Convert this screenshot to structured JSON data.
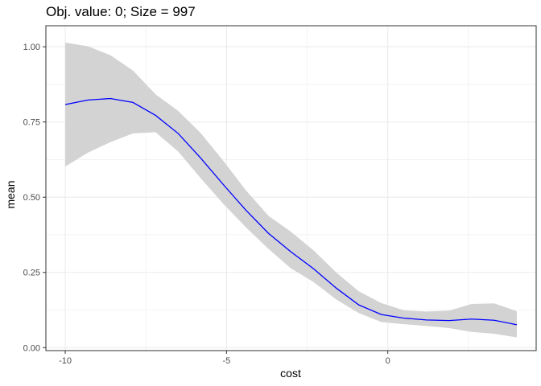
{
  "chart_data": {
    "type": "line",
    "title": "Obj. value: 0; Size = 997",
    "xlabel": "cost",
    "ylabel": "mean",
    "xlim": [
      -10.6,
      4.6
    ],
    "ylim": [
      -0.01,
      1.07
    ],
    "xticks": [
      -10,
      -5,
      0
    ],
    "xtick_labels": [
      "-10",
      "-5",
      "0"
    ],
    "yticks": [
      0,
      0.25,
      0.5,
      0.75,
      1.0
    ],
    "ytick_labels": [
      "0.00",
      "0.25",
      "0.50",
      "0.75",
      "1.00"
    ],
    "grid": true,
    "legend": "none",
    "colors": {
      "line": "#0000FF",
      "ribbon": "#D3D3D3",
      "panel_border": "#333333",
      "grid": "#EBEBEB"
    },
    "series": [
      {
        "x": [
          -10,
          -9.3,
          -8.6,
          -7.9,
          -7.2,
          -6.5,
          -5.8,
          -5.1,
          -4.4,
          -3.7,
          -3.0,
          -2.3,
          -1.6,
          -0.9,
          -0.2,
          0.5,
          1.2,
          1.9,
          2.6,
          3.3,
          4.0
        ],
        "values": [
          0.808,
          0.823,
          0.828,
          0.815,
          0.772,
          0.712,
          0.63,
          0.542,
          0.457,
          0.38,
          0.318,
          0.262,
          0.198,
          0.142,
          0.11,
          0.098,
          0.092,
          0.09,
          0.095,
          0.091,
          0.076
        ],
        "lower": [
          0.602,
          0.648,
          0.683,
          0.712,
          0.716,
          0.652,
          0.563,
          0.478,
          0.4,
          0.328,
          0.263,
          0.218,
          0.16,
          0.115,
          0.085,
          0.078,
          0.072,
          0.065,
          0.052,
          0.046,
          0.034
        ],
        "upper": [
          1.014,
          1.002,
          0.972,
          0.921,
          0.842,
          0.787,
          0.713,
          0.621,
          0.523,
          0.438,
          0.385,
          0.323,
          0.25,
          0.187,
          0.148,
          0.124,
          0.12,
          0.123,
          0.145,
          0.147,
          0.121
        ]
      }
    ]
  }
}
